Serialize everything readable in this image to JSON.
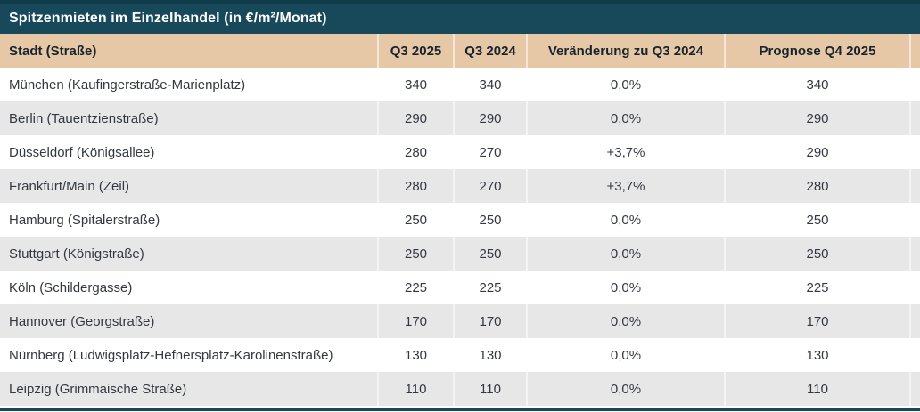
{
  "title": "Spitzenmieten im Einzelhandel (in €/m²/Monat)",
  "colors": {
    "title_bar_bg": "#17495B",
    "title_bar_edge": "#113C4A",
    "title_text": "#FFFFFF",
    "header_bg": "#E6C8A6",
    "header_text": "#17242E",
    "row_bg": "#FFFFFF",
    "row_alt_bg": "#E7E7E7",
    "body_text": "#333840",
    "bottom_bar": "#17495B"
  },
  "chart_data": {
    "type": "table",
    "title": "Spitzenmieten im Einzelhandel (in €/m²/Monat)",
    "columns": [
      "Stadt (Straße)",
      "Q3 2025",
      "Q3 2024",
      "Veränderung zu Q3 2024",
      "Prognose Q4 2025"
    ],
    "rows": [
      [
        "München (Kaufingerstraße-Marienplatz)",
        "340",
        "340",
        "0,0%",
        "340"
      ],
      [
        "Berlin (Tauentzienstraße)",
        "290",
        "290",
        "0,0%",
        "290"
      ],
      [
        "Düsseldorf (Königsallee)",
        "280",
        "270",
        "+3,7%",
        "290"
      ],
      [
        "Frankfurt/Main (Zeil)",
        "280",
        "270",
        "+3,7%",
        "280"
      ],
      [
        "Hamburg (Spitalerstraße)",
        "250",
        "250",
        "0,0%",
        "250"
      ],
      [
        "Stuttgart (Königstraße)",
        "250",
        "250",
        "0,0%",
        "250"
      ],
      [
        "Köln (Schildergasse)",
        "225",
        "225",
        "0,0%",
        "225"
      ],
      [
        "Hannover (Georgstraße)",
        "170",
        "170",
        "0,0%",
        "170"
      ],
      [
        "Nürnberg (Ludwigsplatz-Hefnersplatz-Karolinenstraße)",
        "130",
        "130",
        "0,0%",
        "130"
      ],
      [
        "Leipzig (Grimmaische Straße)",
        "110",
        "110",
        "0,0%",
        "110"
      ]
    ],
    "layout": {
      "zebra_striping": true,
      "numeric_columns_centered": true,
      "value_unit": "€/m²/Monat"
    }
  }
}
